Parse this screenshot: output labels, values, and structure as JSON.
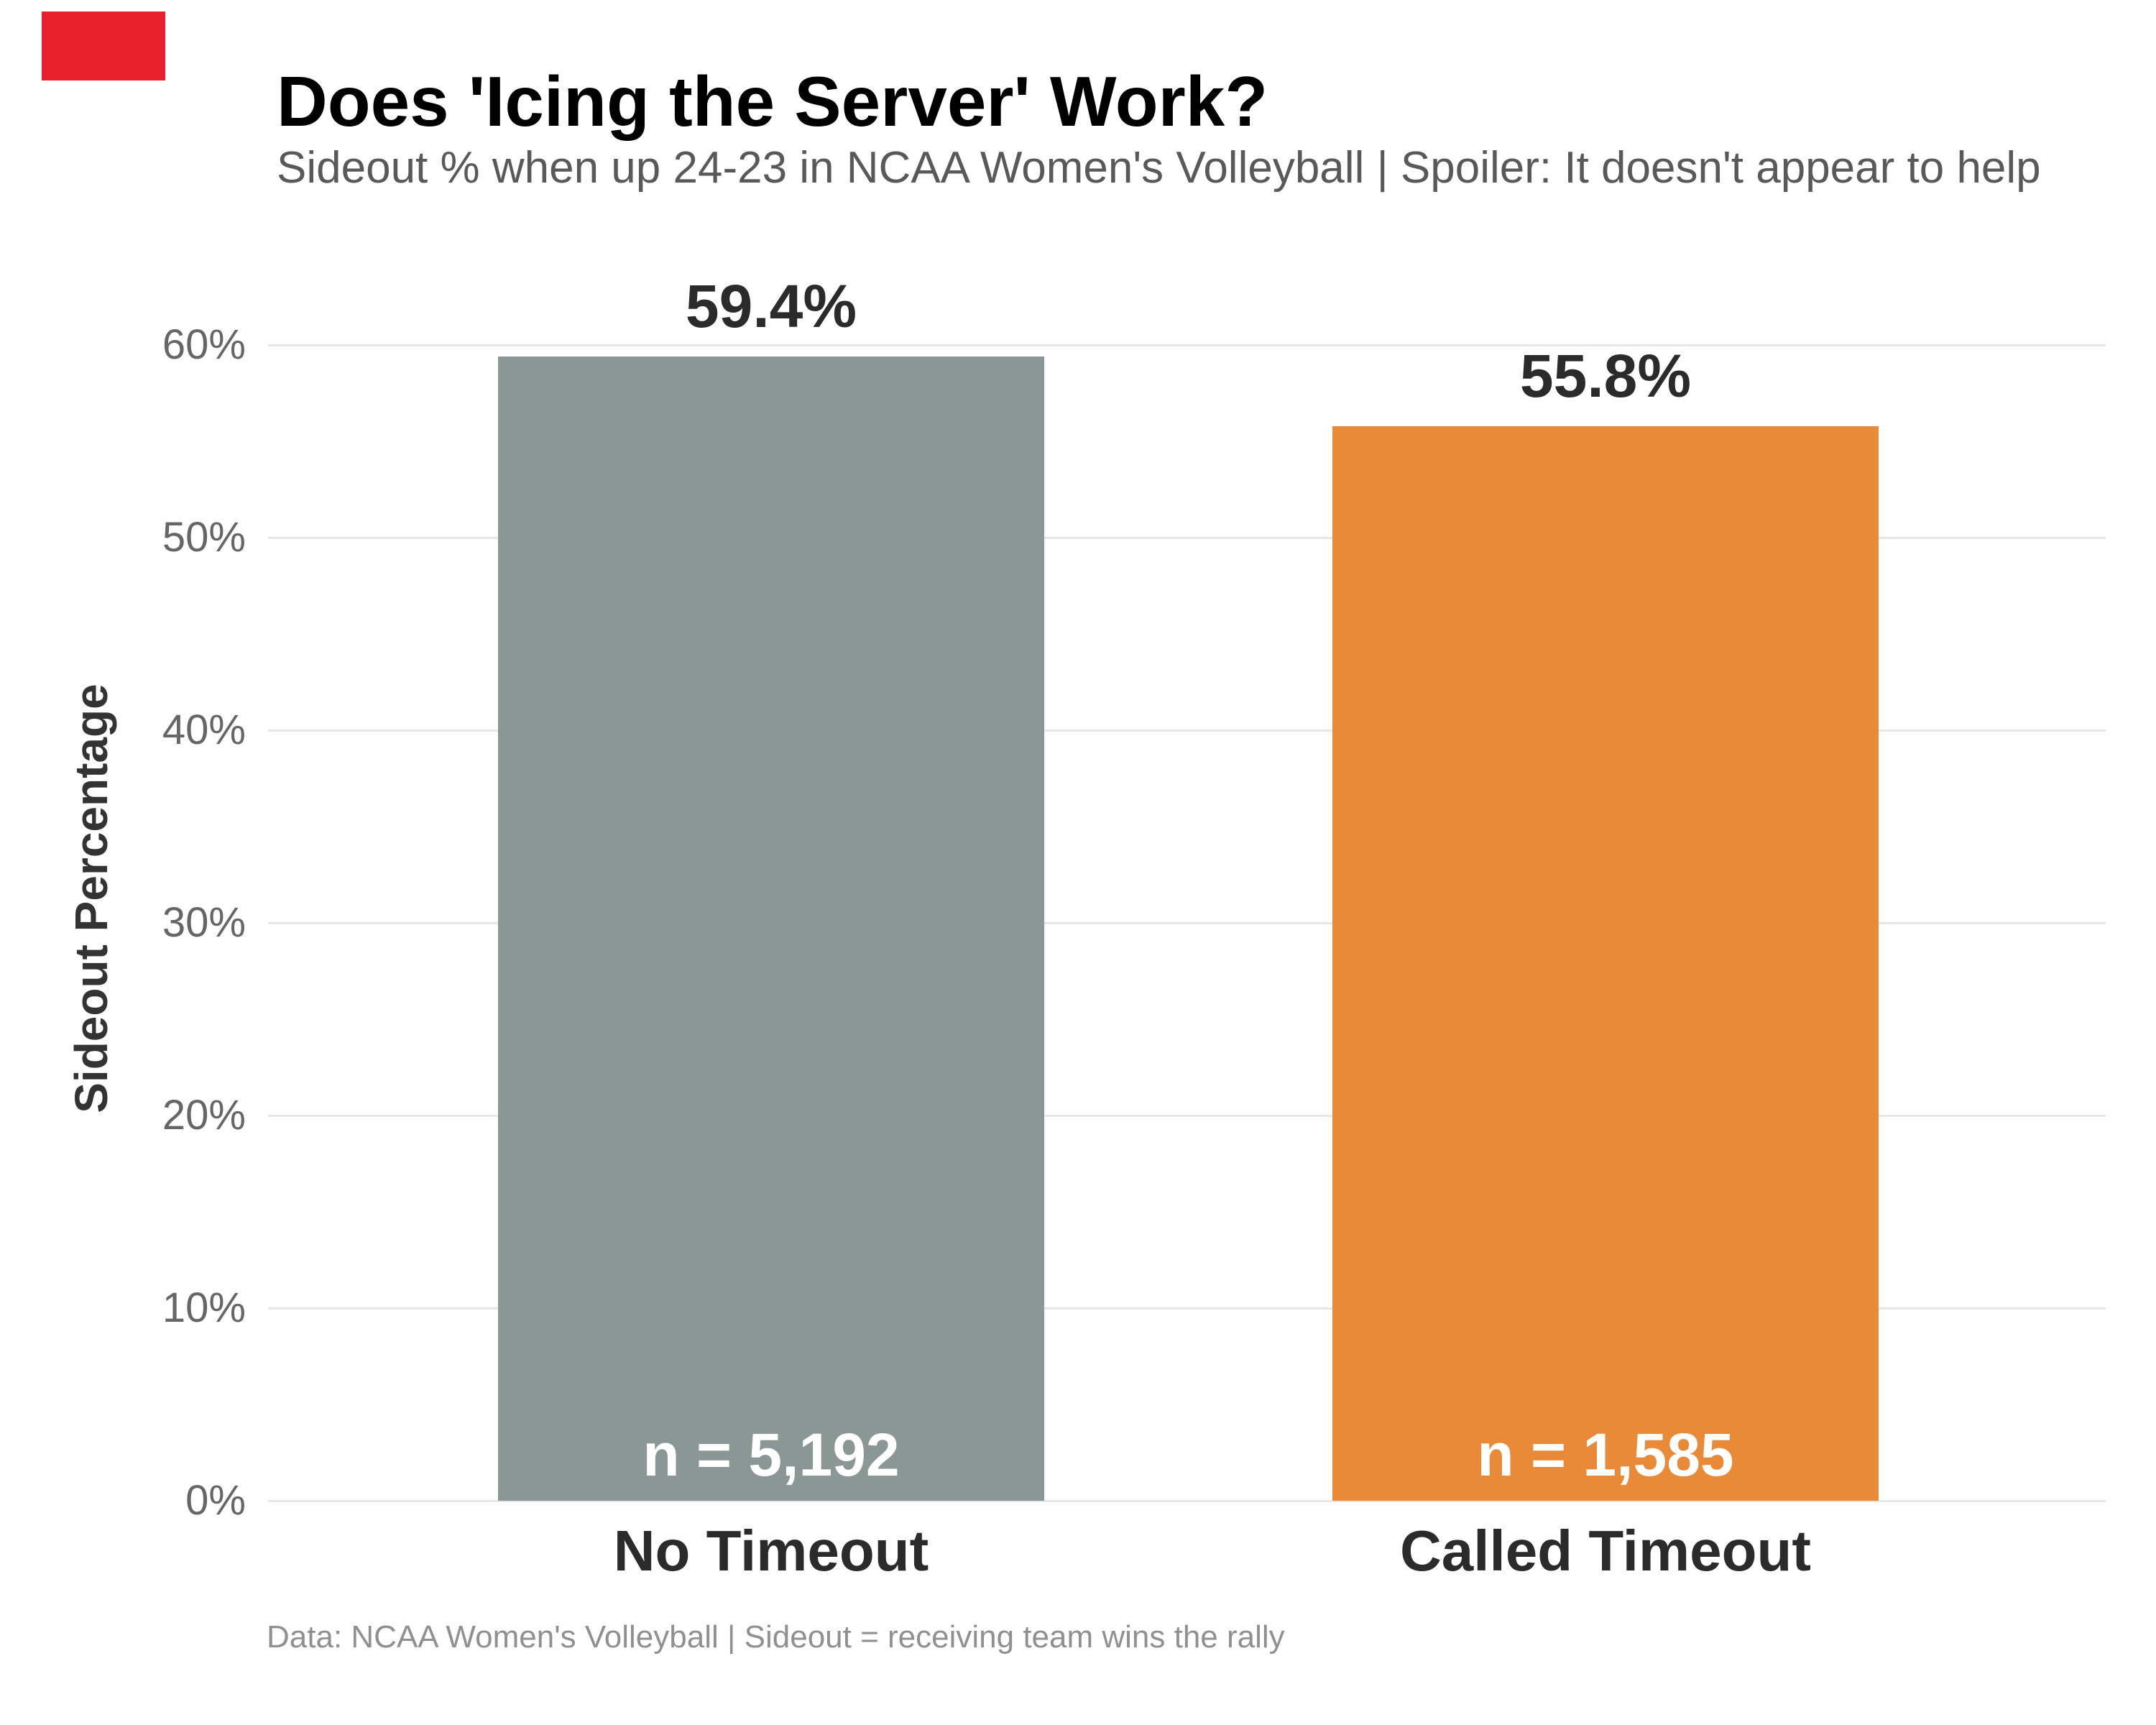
{
  "page": {
    "background_color": "#ffffff",
    "marker_color": "#e8202c"
  },
  "chart_data": {
    "type": "bar",
    "title": "Does 'Icing the Server' Work?",
    "subtitle": "Sideout % when up 24-23 in NCAA Women's Volleyball | Spoiler: It doesn't appear to help",
    "ylabel": "Sideout Percentage",
    "xlabel": "",
    "footer": "Data: NCAA Women's Volleyball | Sideout = receiving team wins the rally",
    "categories": [
      "No Timeout",
      "Called Timeout"
    ],
    "values": [
      59.4,
      55.8
    ],
    "value_labels": [
      "59.4%",
      "55.8%"
    ],
    "sample_sizes": [
      5192,
      1585
    ],
    "n_labels": [
      "n = 5,192",
      "n = 1,585"
    ],
    "bar_colors": [
      "#8b9794",
      "#e98a39"
    ],
    "ylim": [
      0,
      60
    ],
    "ytick_labels": [
      "60%",
      "50%",
      "40%",
      "30%",
      "20%",
      "10%",
      "0%"
    ],
    "grid": true,
    "gridline_color": "#e7e7e7",
    "legend_position": "none"
  }
}
